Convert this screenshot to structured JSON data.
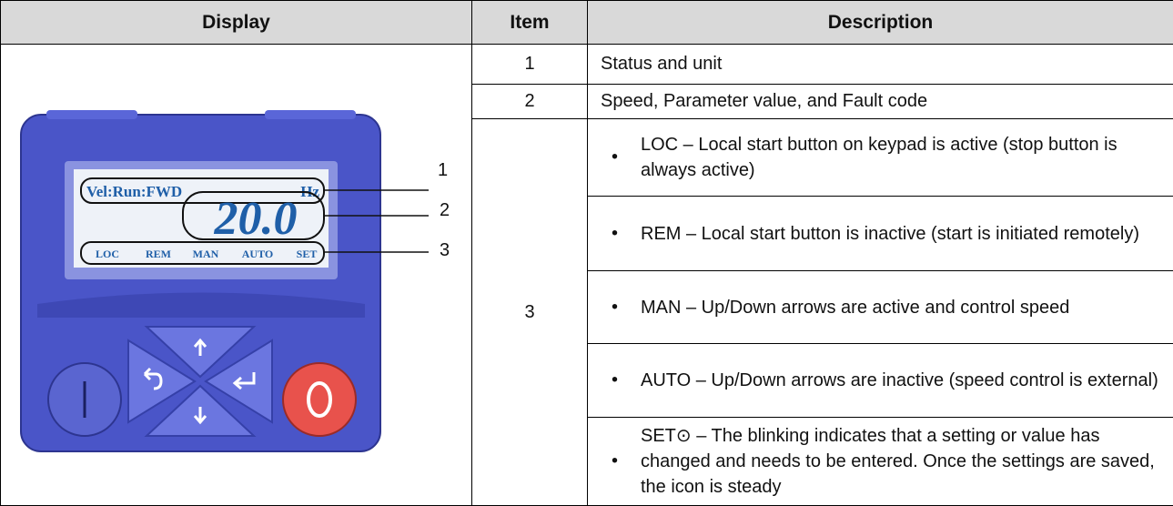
{
  "table": {
    "headers": [
      "Display",
      "Item",
      "Description"
    ],
    "rows": [
      {
        "item": "1",
        "description": "Status and unit"
      },
      {
        "item": "2",
        "description": "Speed, Parameter value, and Fault code"
      },
      {
        "item": "3",
        "bullets": [
          "LOC – Local start button on keypad is active (stop button is always active)",
          "REM – Local start button is inactive (start is initiated remotely)",
          "MAN – Up/Down arrows are active and control speed",
          "AUTO – Up/Down arrows are inactive (speed control is external)",
          "SET⊙ – The blinking indicates that a setting or value has changed and needs to be entered. Once the settings are saved, the icon is steady"
        ]
      }
    ]
  },
  "display": {
    "status_line": "Vel:Run:FWD",
    "unit": "Hz",
    "value": "20.0",
    "indicators": [
      "LOC",
      "REM",
      "MAN",
      "AUTO",
      "SET"
    ],
    "callouts": [
      "1",
      "2",
      "3"
    ]
  }
}
